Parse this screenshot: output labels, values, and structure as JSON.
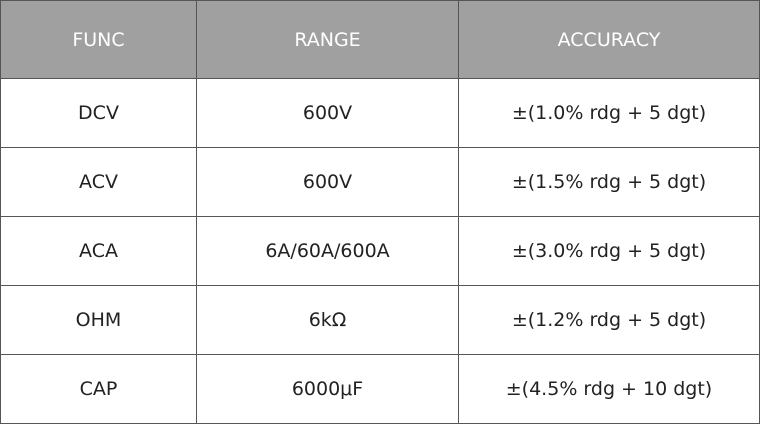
{
  "table": {
    "headers": [
      "FUNC",
      "RANGE",
      "ACCURACY"
    ],
    "rows": [
      [
        "DCV",
        "600V",
        "±(1.0% rdg + 5 dgt)"
      ],
      [
        "ACV",
        "600V",
        "±(1.5% rdg + 5 dgt)"
      ],
      [
        "ACA",
        "6A/60A/600A",
        "±(3.0% rdg + 5 dgt)"
      ],
      [
        "OHM",
        "6kΩ",
        "±(1.2% rdg + 5 dgt)"
      ],
      [
        "CAP",
        "6000μF",
        "±(4.5% rdg + 10 dgt)"
      ]
    ],
    "header_bg": "#a0a0a0"
  }
}
